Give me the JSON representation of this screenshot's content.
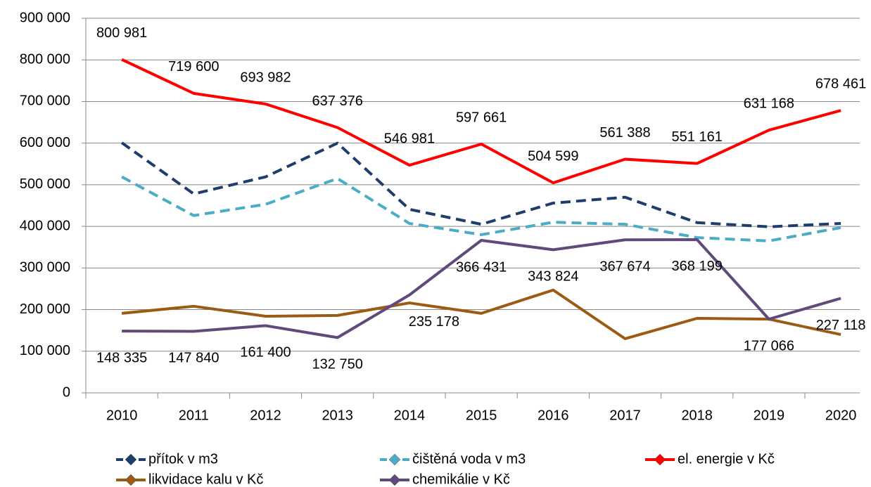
{
  "chart_data": {
    "type": "line",
    "categories": [
      "2010",
      "2011",
      "2012",
      "2013",
      "2014",
      "2015",
      "2016",
      "2017",
      "2018",
      "2019",
      "2020"
    ],
    "series": [
      {
        "name": "přítok v m3",
        "color": "#1f3d6b",
        "dashed": true,
        "values": [
          601000,
          478000,
          519000,
          600000,
          441000,
          405000,
          456000,
          470000,
          409000,
          399000,
          407000
        ]
      },
      {
        "name": "čištěná voda v m3",
        "color": "#4bacc6",
        "dashed": true,
        "values": [
          519000,
          426000,
          453000,
          515000,
          407000,
          380000,
          410000,
          405000,
          373000,
          365000,
          397000
        ]
      },
      {
        "name": "el. energie v Kč",
        "color": "#ff0000",
        "dashed": false,
        "values": [
          800981,
          719600,
          693982,
          637376,
          546981,
          597661,
          504599,
          561388,
          551161,
          631168,
          678461
        ],
        "value_labels": [
          "800 981",
          "719 600",
          "693 982",
          "637 376",
          "546 981",
          "597 661",
          "504 599",
          "561 388",
          "551 161",
          "631 168",
          "678 461"
        ]
      },
      {
        "name": "likvidace kalu v Kč",
        "color": "#9c5b14",
        "dashed": false,
        "values": [
          191000,
          208000,
          184000,
          186000,
          216000,
          191000,
          247000,
          130000,
          179000,
          177000,
          140000
        ]
      },
      {
        "name": "chemikálie v Kč",
        "color": "#604a7b",
        "dashed": false,
        "values": [
          148335,
          147840,
          161400,
          132750,
          235178,
          366431,
          343824,
          367674,
          368199,
          177066,
          227118
        ],
        "value_labels": [
          "148 335",
          "147 840",
          "161 400",
          "132 750",
          "235 178",
          "366 431",
          "343 824",
          "367 674",
          "368 199",
          "177 066",
          "227 118"
        ]
      }
    ],
    "ylim": [
      0,
      900000
    ],
    "yticks": [
      0,
      {
        "value": 100000,
        "label": "100 000"
      },
      {
        "value": 200000,
        "label": "200 000"
      },
      {
        "value": 300000,
        "label": "300 000"
      },
      {
        "value": 400000,
        "label": "400 000"
      },
      {
        "value": 500000,
        "label": "500 000"
      },
      {
        "value": 600000,
        "label": "600 000"
      },
      {
        "value": 700000,
        "label": "700 000"
      },
      {
        "value": 800000,
        "label": "800 000"
      },
      {
        "value": 900000,
        "label": "900 000"
      }
    ],
    "grid": true
  }
}
